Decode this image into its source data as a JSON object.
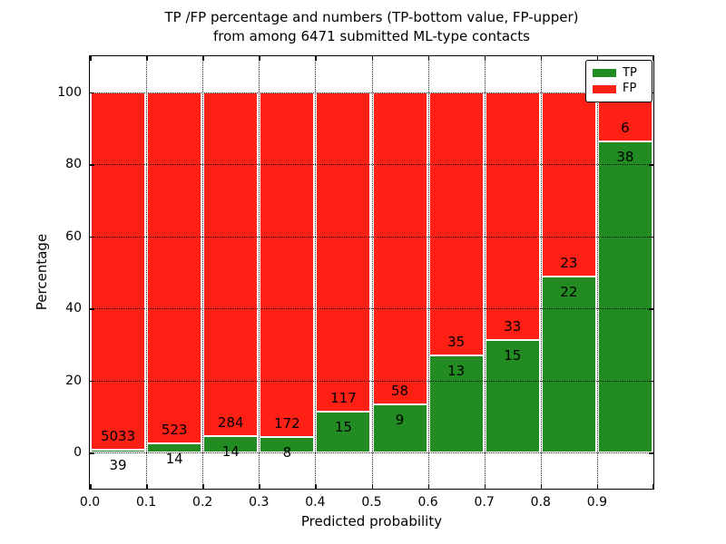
{
  "title": {
    "line1": "TP /FP percentage and numbers (TP-bottom value, FP-upper)",
    "line2": "from among 6471 submitted ML-type contacts"
  },
  "axes": {
    "xlabel": "Predicted probability",
    "ylabel": "Percentage",
    "xtick_labels": [
      "0.0",
      "0.1",
      "0.2",
      "0.3",
      "0.4",
      "0.5",
      "0.6",
      "0.7",
      "0.8",
      "0.9"
    ],
    "ytick_labels": [
      "0",
      "20",
      "40",
      "60",
      "80",
      "100"
    ]
  },
  "legend": {
    "position": "upper right",
    "items": [
      {
        "label": "TP",
        "color": "#228b22"
      },
      {
        "label": "FP",
        "color": "#ff2015"
      }
    ]
  },
  "chart_data": {
    "type": "bar",
    "stacked": true,
    "normalized": "percent of each bin, bars sum to 100%",
    "title": "TP /FP percentage and numbers (TP-bottom value, FP-upper) from among 6471 submitted ML-type contacts",
    "xlabel": "Predicted probability",
    "ylabel": "Percentage",
    "xlim": [
      0.0,
      1.0
    ],
    "ylim": [
      -10,
      110
    ],
    "xticks": [
      0.0,
      0.1,
      0.2,
      0.3,
      0.4,
      0.5,
      0.6,
      0.7,
      0.8,
      0.9
    ],
    "yticks": [
      0,
      20,
      40,
      60,
      80,
      100
    ],
    "grid": "dotted, both axes, drawn over bars",
    "legend_position": "upper right",
    "bin_edges": [
      0.0,
      0.1,
      0.2,
      0.3,
      0.4,
      0.5,
      0.6,
      0.7,
      0.8,
      0.9,
      1.0
    ],
    "total_contacts": 6471,
    "series": [
      {
        "name": "TP",
        "color": "#228b22",
        "position": "bottom",
        "counts": [
          39,
          14,
          14,
          8,
          15,
          9,
          13,
          15,
          22,
          38
        ]
      },
      {
        "name": "FP",
        "color": "#ff2015",
        "position": "top",
        "counts": [
          5033,
          523,
          284,
          172,
          117,
          58,
          35,
          33,
          23,
          6
        ]
      }
    ]
  }
}
